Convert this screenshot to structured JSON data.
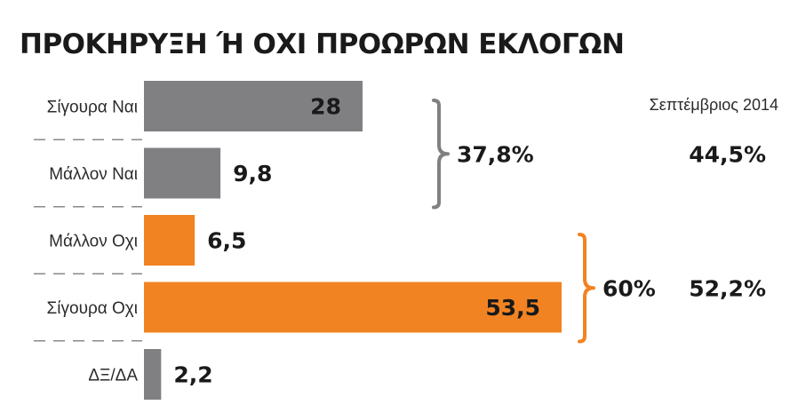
{
  "chart_data": {
    "type": "bar",
    "orientation": "horizontal",
    "title": "ΠΡΟΚΗΡΥΞΗ Ή ΟΧΙ ΠΡΟΩΡΩΝ ΕΚΛΟΓΩΝ",
    "categories": [
      "Σίγουρα Ναι",
      "Μάλλον Ναι",
      "Μάλλον Οχι",
      "Σίγουρα Οχι",
      "ΔΞ/ΔΑ"
    ],
    "values": [
      28,
      9.8,
      6.5,
      53.5,
      2.2
    ],
    "value_labels": [
      "28",
      "9,8",
      "6,5",
      "53,5",
      "2,2"
    ],
    "colors": [
      "#808083",
      "#808083",
      "#f28322",
      "#f28322",
      "#808083"
    ],
    "xlim": [
      0,
      53.5
    ],
    "grid": false,
    "groups": [
      {
        "members": [
          0,
          1
        ],
        "total_label": "37,8%",
        "reference_label": "44,5%",
        "bracket_color": "#808083"
      },
      {
        "members": [
          2,
          3
        ],
        "total_label": "60%",
        "reference_label": "52,2%",
        "bracket_color": "#f28322"
      }
    ],
    "reference_heading": "Σεπτέμβριος 2014"
  }
}
